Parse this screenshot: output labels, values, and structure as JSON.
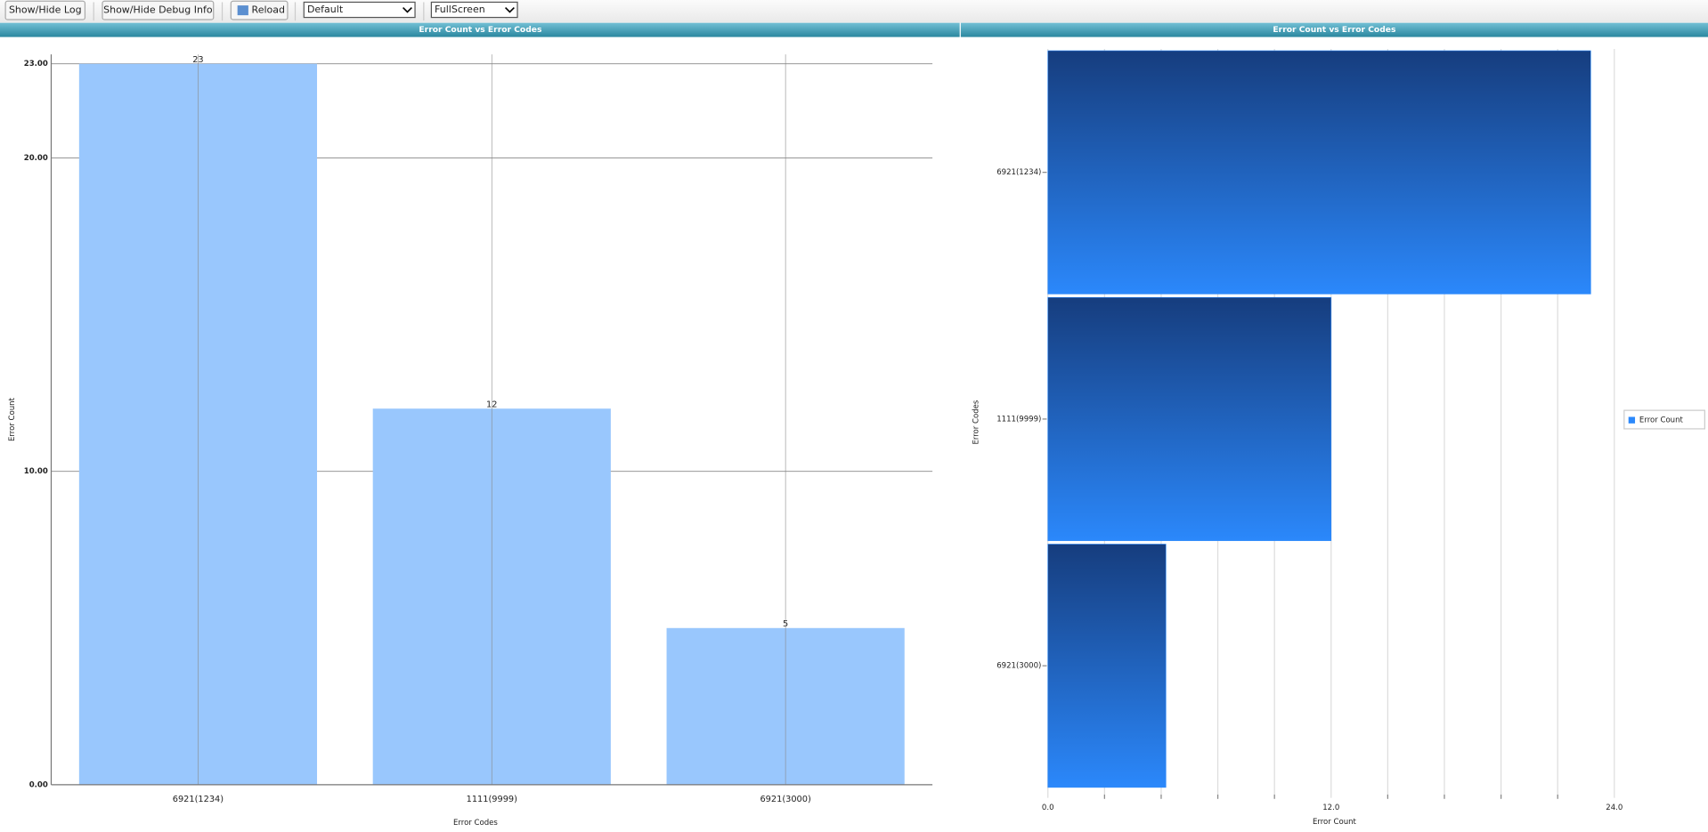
{
  "toolbar": {
    "buttons": [
      "Show/Hide Log",
      "Show/Hide Debug Info",
      "Reload"
    ],
    "selects": [
      "Default",
      "FullScreen"
    ]
  },
  "chart_data": [
    {
      "type": "bar",
      "orientation": "vertical",
      "title": "Error Count vs Error Codes",
      "x_label": "Error Codes",
      "y_label": "Error Count",
      "categories": [
        "6921(1234)",
        "1111(9999)",
        "6921(3000)"
      ],
      "values": [
        23,
        12,
        5
      ],
      "color": "#99c7fd",
      "ylim": [
        0,
        23.3
      ],
      "yticks": [
        {
          "value": 0,
          "label": "0.00"
        },
        {
          "value": 10,
          "label": "10.00"
        },
        {
          "value": 20,
          "label": "20.00"
        },
        {
          "value": 23,
          "label": "23.00"
        }
      ],
      "grid": true
    },
    {
      "type": "bar",
      "orientation": "horizontal",
      "title": "Error Count vs Error Codes",
      "x_label": "Error Count",
      "y_label": "Error Codes",
      "categories": [
        "6921(1234)",
        "1111(9999)",
        "6921(3000)"
      ],
      "values": [
        23,
        12,
        5
      ],
      "gradient": [
        "#163d7e",
        "#2b88fb"
      ],
      "xlim": [
        0,
        24
      ],
      "xticks": [
        {
          "value": 0,
          "label": "0.0"
        },
        {
          "value": 12,
          "label": "12.0"
        },
        {
          "value": 24,
          "label": "24.0"
        }
      ],
      "xminor_ticks": [
        2.4,
        4.8,
        7.2,
        9.6,
        14.4,
        16.8,
        19.2,
        21.6
      ],
      "grid": true,
      "legend": {
        "name": "Error Count",
        "position": "right"
      }
    }
  ]
}
